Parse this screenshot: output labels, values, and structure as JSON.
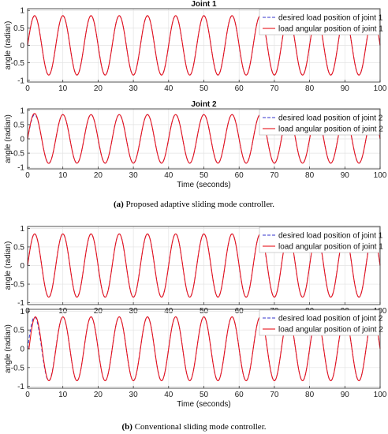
{
  "captions": {
    "a_tag": "(a)",
    "a_text": "Proposed adaptive sliding mode controller.",
    "b_tag": "(b)",
    "b_text": "Conventional sliding mode controller."
  },
  "colors": {
    "desired": "#3333cc",
    "actual": "#e8141c",
    "grid": "#e3e3e3",
    "axis": "#262626"
  },
  "chart_data": [
    {
      "type": "line",
      "panel": "a",
      "title": "Joint 1",
      "xlabel": "",
      "ylabel": "angle (radian)",
      "xlim": [
        0,
        100
      ],
      "ylim": [
        -1.05,
        1.05
      ],
      "xticks": [
        0,
        10,
        20,
        30,
        40,
        50,
        60,
        70,
        80,
        90,
        100
      ],
      "yticks": [
        -1,
        -0.5,
        0,
        0.5,
        1
      ],
      "ytick_labels": [
        "-1",
        "-0.5",
        "0",
        "0.5",
        "1"
      ],
      "grid": true,
      "legend_position": "top-right",
      "signal": {
        "form": "A*sin(2*pi*t/T)",
        "amplitude": 0.85,
        "period_s": 8,
        "t_start": 0,
        "t_end": 100
      },
      "series": [
        {
          "name": "desired load position of joint 1",
          "style": "dashed",
          "color": "#3333cc",
          "tracking_error": "none visible"
        },
        {
          "name": "load angular position of joint 1",
          "style": "solid",
          "color": "#e8141c",
          "tracking_error": "none visible"
        }
      ]
    },
    {
      "type": "line",
      "panel": "a",
      "title": "Joint 2",
      "xlabel": "Time (seconds)",
      "ylabel": "angle (radian)",
      "xlim": [
        0,
        100
      ],
      "ylim": [
        -1.05,
        1.05
      ],
      "xticks": [
        0,
        10,
        20,
        30,
        40,
        50,
        60,
        70,
        80,
        90,
        100
      ],
      "yticks": [
        -1,
        -0.5,
        0,
        0.5,
        1
      ],
      "ytick_labels": [
        "-1",
        "-0.5",
        "0",
        "0.5",
        "1"
      ],
      "grid": true,
      "legend_position": "top-right",
      "signal": {
        "form": "A*sin(2*pi*t/T)",
        "amplitude": 0.85,
        "period_s": 8,
        "t_start": 0,
        "t_end": 100
      },
      "series": [
        {
          "name": "desired load position of joint 2",
          "style": "dashed",
          "color": "#3333cc",
          "tracking_error": "none visible"
        },
        {
          "name": "load angular position of joint 2",
          "style": "solid",
          "color": "#e8141c",
          "tracking_error": "small overshoot in first cycle"
        }
      ]
    },
    {
      "type": "line",
      "panel": "b",
      "title": "",
      "xlabel": "",
      "ylabel": "angle (radian)",
      "xlim": [
        0,
        100
      ],
      "ylim": [
        -1.05,
        1.05
      ],
      "xticks": [
        0,
        10,
        20,
        30,
        40,
        50,
        60,
        70,
        80,
        90,
        100
      ],
      "yticks": [
        -1,
        -0.5,
        0,
        0.5,
        1
      ],
      "ytick_labels": [
        "-1",
        "-0.5",
        "0",
        "0.5",
        "1"
      ],
      "grid": true,
      "legend_position": "top-right",
      "signal": {
        "form": "A*sin(2*pi*t/T)",
        "amplitude": 0.85,
        "period_s": 8,
        "t_start": 0,
        "t_end": 100
      },
      "series": [
        {
          "name": "desired load position of joint 1",
          "style": "dashed",
          "color": "#3333cc",
          "tracking_error": "none visible"
        },
        {
          "name": "load angular position of joint 1",
          "style": "solid",
          "color": "#e8141c",
          "tracking_error": "none visible"
        }
      ]
    },
    {
      "type": "line",
      "panel": "b",
      "title": "",
      "xlabel": "Time (seconds)",
      "ylabel": "angle (radian)",
      "xlim": [
        0,
        100
      ],
      "ylim": [
        -1.05,
        1.05
      ],
      "xticks": [
        0,
        10,
        20,
        30,
        40,
        50,
        60,
        70,
        80,
        90,
        100
      ],
      "yticks": [
        -1,
        -0.5,
        0,
        0.5,
        1
      ],
      "ytick_labels": [
        "-1",
        "-0.5",
        "0",
        "0.5",
        "1"
      ],
      "grid": true,
      "legend_position": "top-right",
      "signal": {
        "form": "A*sin(2*pi*t/T)",
        "amplitude": 0.85,
        "period_s": 8,
        "t_start": 0,
        "t_end": 100
      },
      "series": [
        {
          "name": "desired load position of joint 2",
          "style": "dashed",
          "color": "#3333cc",
          "tracking_error": "none visible"
        },
        {
          "name": "load angular position of joint 2",
          "style": "solid",
          "color": "#e8141c",
          "tracking_error": "lags desired signal in first cycle"
        }
      ]
    }
  ]
}
